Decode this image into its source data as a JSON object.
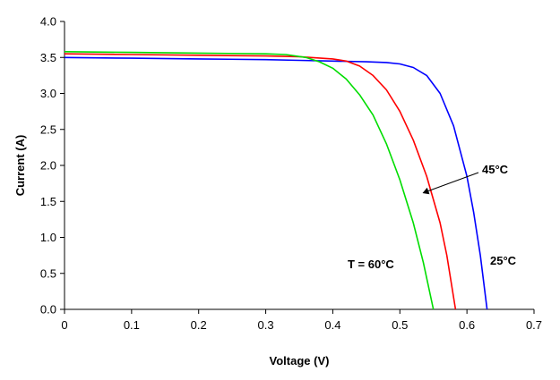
{
  "chart_data": {
    "type": "line",
    "xlabel": "Voltage (V)",
    "ylabel": "Current (A)",
    "xlim": [
      0,
      0.7
    ],
    "ylim": [
      0,
      4.0
    ],
    "x_ticks": [
      "0",
      "0.1",
      "0.2",
      "0.3",
      "0.4",
      "0.5",
      "0.6",
      "0.7"
    ],
    "y_ticks": [
      "0.0",
      "0.5",
      "1.0",
      "1.5",
      "2.0",
      "2.5",
      "3.0",
      "3.5",
      "4.0"
    ],
    "grid": false,
    "legend": "none",
    "series": [
      {
        "color": "#0000ff",
        "points": [
          [
            0,
            3.5
          ],
          [
            0.1,
            3.49
          ],
          [
            0.2,
            3.48
          ],
          [
            0.3,
            3.47
          ],
          [
            0.35,
            3.46
          ],
          [
            0.4,
            3.45
          ],
          [
            0.45,
            3.44
          ],
          [
            0.48,
            3.43
          ],
          [
            0.5,
            3.41
          ],
          [
            0.52,
            3.36
          ],
          [
            0.54,
            3.25
          ],
          [
            0.56,
            3.0
          ],
          [
            0.58,
            2.55
          ],
          [
            0.6,
            1.85
          ],
          [
            0.61,
            1.35
          ],
          [
            0.62,
            0.75
          ],
          [
            0.63,
            0.0
          ]
        ]
      },
      {
        "color": "#ff0000",
        "points": [
          [
            0,
            3.55
          ],
          [
            0.1,
            3.54
          ],
          [
            0.2,
            3.53
          ],
          [
            0.3,
            3.52
          ],
          [
            0.35,
            3.51
          ],
          [
            0.4,
            3.48
          ],
          [
            0.42,
            3.45
          ],
          [
            0.44,
            3.38
          ],
          [
            0.46,
            3.25
          ],
          [
            0.48,
            3.05
          ],
          [
            0.5,
            2.75
          ],
          [
            0.52,
            2.35
          ],
          [
            0.54,
            1.85
          ],
          [
            0.56,
            1.2
          ],
          [
            0.57,
            0.75
          ],
          [
            0.583,
            0.0
          ]
        ]
      },
      {
        "color": "#00dd00",
        "points": [
          [
            0,
            3.58
          ],
          [
            0.1,
            3.57
          ],
          [
            0.2,
            3.56
          ],
          [
            0.3,
            3.55
          ],
          [
            0.33,
            3.54
          ],
          [
            0.36,
            3.5
          ],
          [
            0.38,
            3.44
          ],
          [
            0.4,
            3.35
          ],
          [
            0.42,
            3.2
          ],
          [
            0.44,
            2.98
          ],
          [
            0.46,
            2.7
          ],
          [
            0.48,
            2.3
          ],
          [
            0.5,
            1.8
          ],
          [
            0.52,
            1.2
          ],
          [
            0.535,
            0.65
          ],
          [
            0.55,
            0.0
          ]
        ]
      }
    ],
    "annotations": [
      {
        "text": "45°C",
        "arrow_to": [
          0.535,
          1.62
        ]
      },
      {
        "text": "25°C"
      },
      {
        "text": "T = 60°C"
      }
    ]
  }
}
